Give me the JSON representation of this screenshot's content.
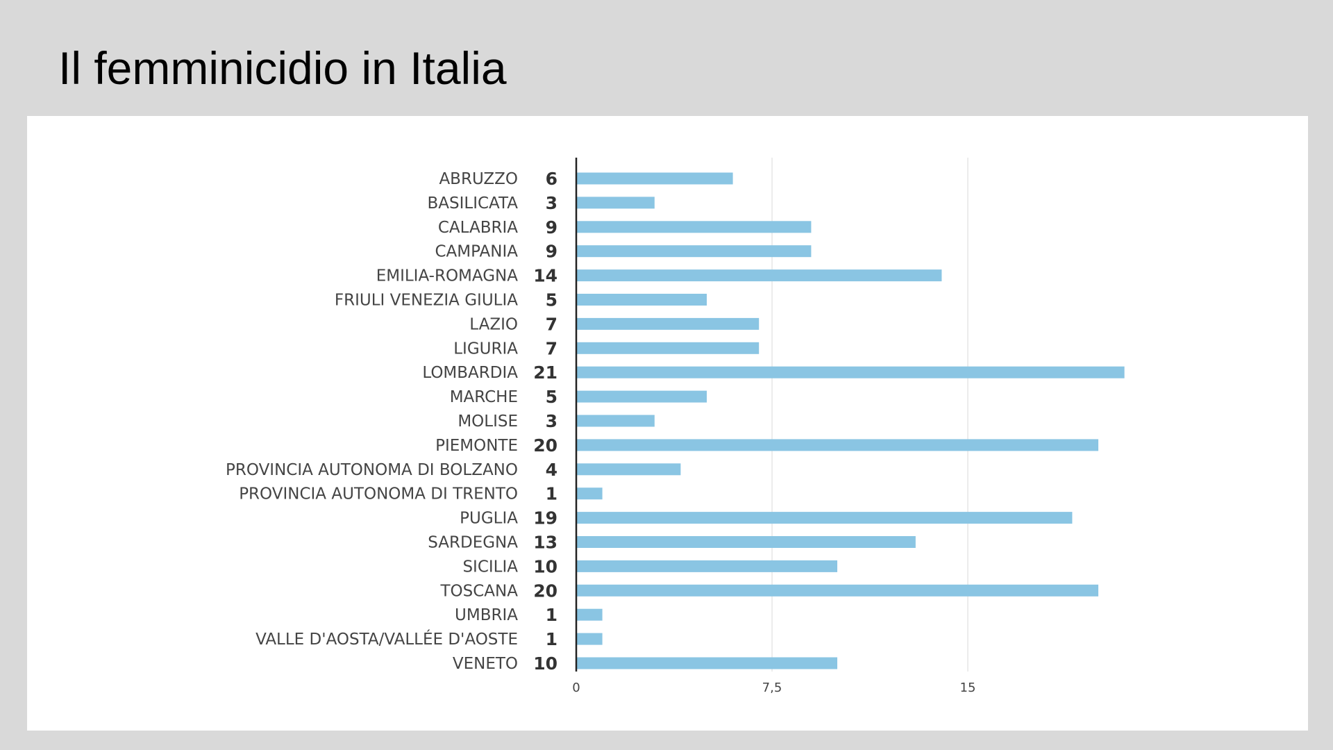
{
  "slide": {
    "title": "Il femminicidio in Italia"
  },
  "chart_data": {
    "type": "bar",
    "orientation": "horizontal",
    "categories": [
      "ABRUZZO",
      "BASILICATA",
      "CALABRIA",
      "CAMPANIA",
      "EMILIA-ROMAGNA",
      "FRIULI VENEZIA GIULIA",
      "LAZIO",
      "LIGURIA",
      "LOMBARDIA",
      "MARCHE",
      "MOLISE",
      "PIEMONTE",
      "PROVINCIA AUTONOMA DI BOLZANO",
      "PROVINCIA AUTONOMA DI TRENTO",
      "PUGLIA",
      "SARDEGNA",
      "SICILIA",
      "TOSCANA",
      "UMBRIA",
      "VALLE D'AOSTA/VALLÉE D'AOSTE",
      "VENETO"
    ],
    "values": [
      6,
      3,
      9,
      9,
      14,
      5,
      7,
      7,
      21,
      5,
      3,
      20,
      4,
      1,
      19,
      13,
      10,
      20,
      1,
      1,
      10
    ],
    "xticks": [
      "0",
      "7,5",
      "15"
    ],
    "xtick_values": [
      0,
      7.5,
      15
    ],
    "xlim": [
      0,
      21
    ],
    "grid": true,
    "colors": {
      "bar": "#8ac5e3",
      "axis": "#222222",
      "grid": "#e6e6e6"
    }
  }
}
